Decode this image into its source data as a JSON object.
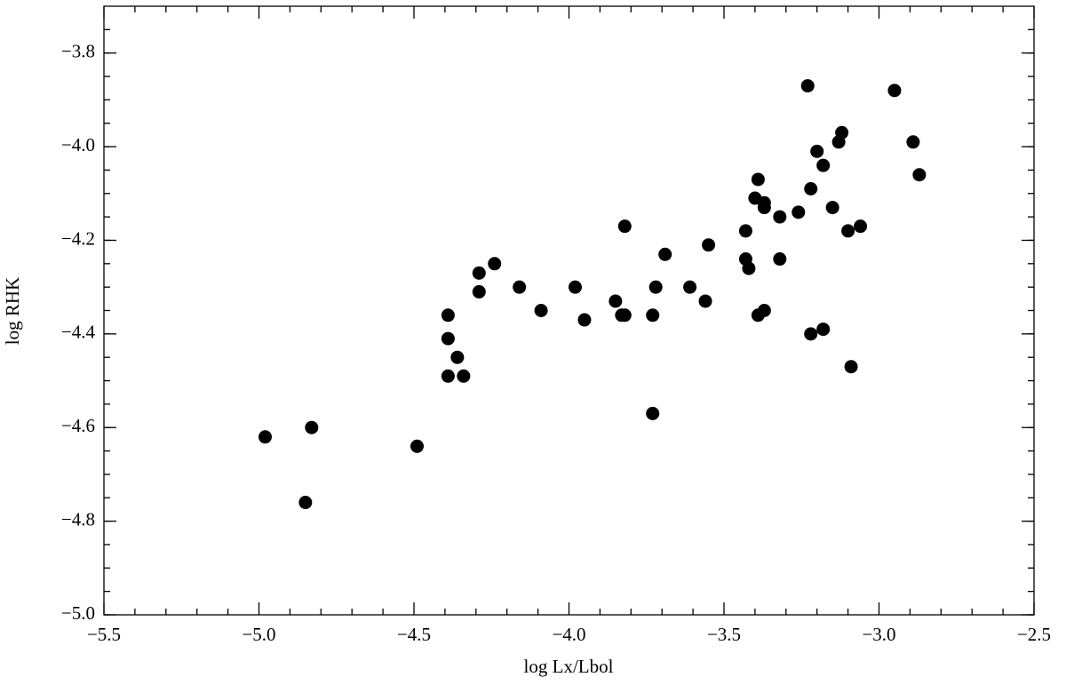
{
  "chart_data": {
    "type": "scatter",
    "x_label": "log Lx/Lbol",
    "y_label": "log RHK",
    "xlim": [
      -5.5,
      -2.5
    ],
    "ylim": [
      -5.0,
      -3.7
    ],
    "xticks": [
      {
        "value": -5.5,
        "label": "−5.5"
      },
      {
        "value": -5.0,
        "label": "−5.0"
      },
      {
        "value": -4.5,
        "label": "−4.5"
      },
      {
        "value": -4.0,
        "label": "−4.0"
      },
      {
        "value": -3.5,
        "label": "−3.5"
      },
      {
        "value": -3.0,
        "label": "−3.0"
      },
      {
        "value": -2.5,
        "label": "−2.5"
      }
    ],
    "yticks": [
      {
        "value": -5.0,
        "label": "−5.0"
      },
      {
        "value": -4.8,
        "label": "−4.8"
      },
      {
        "value": -4.6,
        "label": "−4.6"
      },
      {
        "value": -4.4,
        "label": "−4.4"
      },
      {
        "value": -4.2,
        "label": "−4.2"
      },
      {
        "value": -4.0,
        "label": "−4.0"
      },
      {
        "value": -3.8,
        "label": "−3.8"
      }
    ],
    "color": "#000000",
    "x": [
      -4.98,
      -4.83,
      -4.85,
      -4.49,
      -4.39,
      -4.39,
      -4.39,
      -4.36,
      -4.34,
      -4.29,
      -4.29,
      -4.24,
      -4.16,
      -4.09,
      -3.98,
      -3.95,
      -3.85,
      -3.83,
      -3.82,
      -3.82,
      -3.73,
      -3.73,
      -3.72,
      -3.69,
      -3.61,
      -3.56,
      -3.55,
      -3.43,
      -3.43,
      -3.42,
      -3.4,
      -3.39,
      -3.39,
      -3.37,
      -3.37,
      -3.37,
      -3.32,
      -3.32,
      -3.26,
      -3.23,
      -3.22,
      -3.22,
      -3.2,
      -3.18,
      -3.18,
      -3.15,
      -3.13,
      -3.12,
      -3.1,
      -3.09,
      -3.06,
      -2.95,
      -2.89,
      -2.87
    ],
    "y": [
      -4.62,
      -4.6,
      -4.76,
      -4.64,
      -4.36,
      -4.41,
      -4.49,
      -4.45,
      -4.49,
      -4.27,
      -4.31,
      -4.25,
      -4.3,
      -4.35,
      -4.3,
      -4.37,
      -4.33,
      -4.36,
      -4.36,
      -4.17,
      -4.36,
      -4.57,
      -4.3,
      -4.23,
      -4.3,
      -4.33,
      -4.21,
      -4.18,
      -4.24,
      -4.26,
      -4.11,
      -4.07,
      -4.36,
      -4.12,
      -4.13,
      -4.35,
      -4.15,
      -4.24,
      -4.14,
      -3.87,
      -4.09,
      -4.4,
      -4.01,
      -4.04,
      -4.39,
      -4.13,
      -3.99,
      -3.97,
      -4.18,
      -4.47,
      -4.17,
      -3.88,
      -3.99,
      -4.06
    ]
  }
}
